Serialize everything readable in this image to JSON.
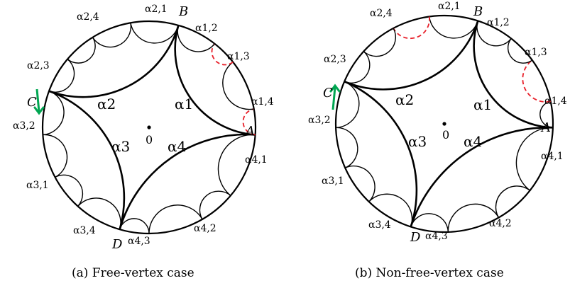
{
  "panels": [
    {
      "id": "a",
      "caption": "(a) Free-vertex case",
      "origin_label": "0",
      "vertices": {
        "A": "A",
        "B": "B",
        "C": "C",
        "D": "D"
      },
      "big_arcs": [
        "α2",
        "α1",
        "α3",
        "α4"
      ],
      "small_arcs": [
        "α2,1",
        "α1,2",
        "α2,4",
        "α1,3",
        "α2,3",
        "α1,4",
        "α3,2",
        "α4,1",
        "α3,1",
        "α4,2",
        "α3,4",
        "α4,3"
      ],
      "arrow": "down",
      "arrow_color": "#00a651",
      "dashed_color": "#e8202a"
    },
    {
      "id": "b",
      "caption": "(b) Non-free-vertex case",
      "origin_label": "0",
      "vertices": {
        "A": "A",
        "B": "B",
        "C": "C",
        "D": "D"
      },
      "big_arcs": [
        "α2",
        "α1",
        "α3",
        "α4"
      ],
      "small_arcs": [
        "α2,1",
        "α1,2",
        "α2,4",
        "α1,3",
        "α2,3",
        "α1,4",
        "α3,2",
        "α4,1",
        "α3,1",
        "α4,2",
        "α3,4",
        "α4,3"
      ],
      "arrow": "up",
      "arrow_color": "#00a651",
      "dashed_color": "#e8202a"
    }
  ]
}
